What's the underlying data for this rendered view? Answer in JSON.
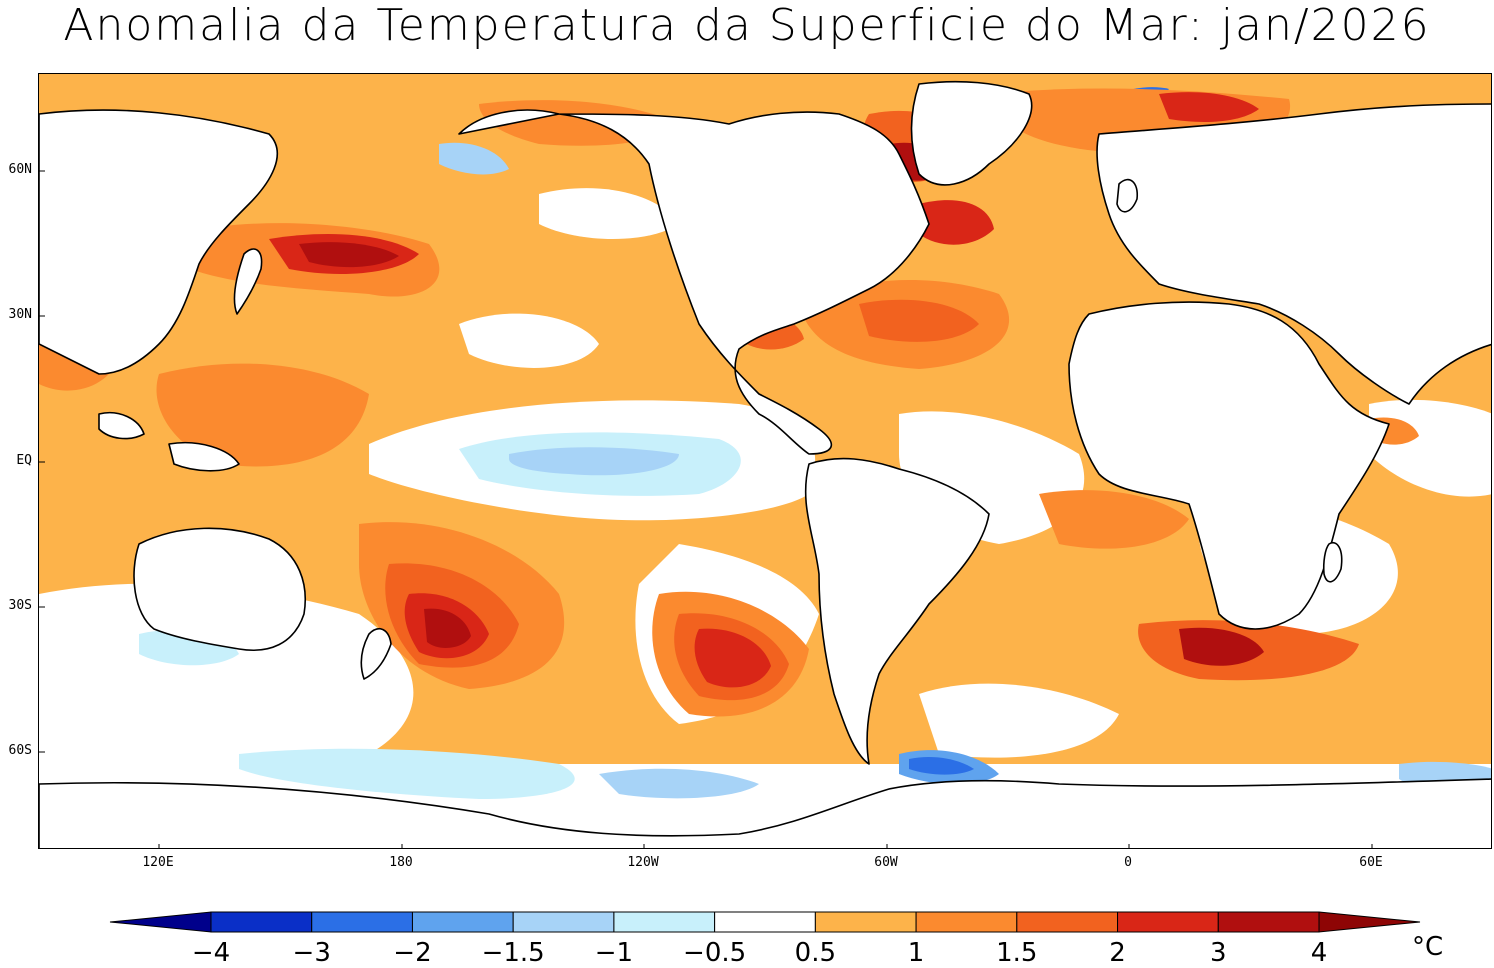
{
  "title": "Anomalia da Temperatura da Superficie do Mar: jan/2026",
  "lat_labels": [
    "60N",
    "30N",
    "EQ",
    "30S",
    "60S"
  ],
  "lon_labels": [
    "120E",
    "180",
    "120W",
    "60W",
    "0",
    "60E"
  ],
  "colorbar": {
    "unit": "°C",
    "labels": [
      "−4",
      "−3",
      "−2",
      "−1.5",
      "−1",
      "−0.5",
      "0.5",
      "1",
      "1.5",
      "2",
      "3",
      "4"
    ],
    "colors": [
      "#00008b",
      "#0a2fc7",
      "#2b6fe6",
      "#5fa3ee",
      "#a7d3f7",
      "#c8f0fb",
      "#ffffff",
      "#fdb34a",
      "#fb8a2f",
      "#f2621f",
      "#d92617",
      "#b00f0f",
      "#8e0505"
    ]
  },
  "legend_palette": {
    "land": "#ffffff",
    "coast": "#000000",
    "neutral_sea": "#ffffff"
  }
}
